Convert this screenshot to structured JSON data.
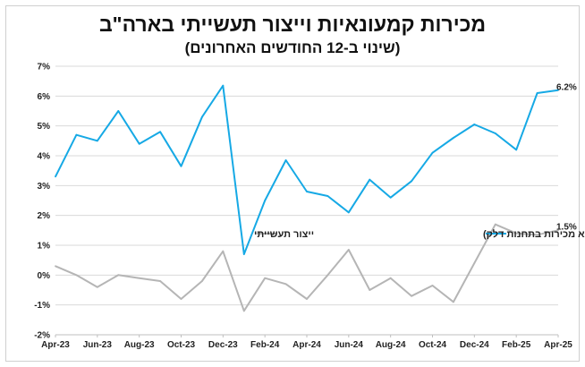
{
  "chart_data": {
    "type": "line",
    "title": "מכירות קמעונאיות וייצור תעשייתי בארה\"ב",
    "subtitle": "(שינוי ב-12 החודשים האחרונים)",
    "x": [
      "Apr-23",
      "May-23",
      "Jun-23",
      "Jul-23",
      "Aug-23",
      "Sep-23",
      "Oct-23",
      "Nov-23",
      "Dec-23",
      "Jan-24",
      "Feb-24",
      "Mar-24",
      "Apr-24",
      "May-24",
      "Jun-24",
      "Jul-24",
      "Aug-24",
      "Sep-24",
      "Oct-24",
      "Nov-24",
      "Dec-24",
      "Jan-25",
      "Feb-25",
      "Mar-25",
      "Apr-25"
    ],
    "x_tick_labels": [
      "Apr-23",
      "Jun-23",
      "Aug-23",
      "Oct-23",
      "Dec-23",
      "Feb-24",
      "Apr-24",
      "Jun-24",
      "Aug-24",
      "Oct-24",
      "Dec-24",
      "Feb-25",
      "Apr-25"
    ],
    "y_tick_labels": [
      "7%",
      "6%",
      "5%",
      "4%",
      "3%",
      "2%",
      "1%",
      "0%",
      "-1%",
      "-2%"
    ],
    "ylim": [
      -2,
      7
    ],
    "y_unit": "%",
    "grid": true,
    "legend_placement": "center",
    "series": [
      {
        "name": "מכירות קמעונאיות (ללא מכירות בתחנות דלק)",
        "color": "#16a9e5",
        "values": [
          3.3,
          4.7,
          4.5,
          5.5,
          4.4,
          4.8,
          3.65,
          5.3,
          6.35,
          0.7,
          2.5,
          3.85,
          2.8,
          2.65,
          2.1,
          3.2,
          2.6,
          3.15,
          4.1,
          4.6,
          5.05,
          4.75,
          4.2,
          6.1,
          6.2
        ],
        "end_label": "6.2%"
      },
      {
        "name": "ייצור תעשייתי",
        "color": "#b5b5b5",
        "values": [
          0.3,
          0.0,
          -0.4,
          0.0,
          -0.1,
          -0.2,
          -0.8,
          -0.2,
          0.8,
          -1.2,
          -0.1,
          -0.3,
          -0.8,
          0.0,
          0.85,
          -0.5,
          -0.1,
          -0.7,
          -0.35,
          -0.9,
          0.4,
          1.7,
          1.4,
          1.35,
          1.5
        ],
        "end_label": "1.5%"
      }
    ]
  }
}
